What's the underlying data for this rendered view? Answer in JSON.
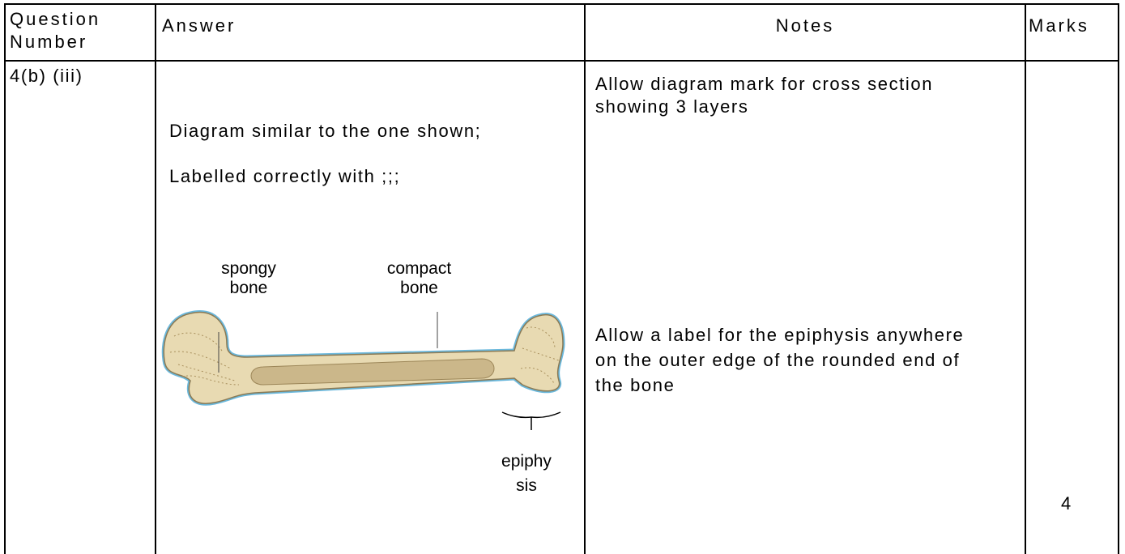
{
  "table": {
    "header": {
      "question_number": "Question Number",
      "answer": "Answer",
      "notes": "Notes",
      "marks": "Marks"
    },
    "row": {
      "question_number": "4(b) (iii)",
      "answer": {
        "text": [
          "Diagram similar to the one shown;",
          "Labelled correctly with ;;;"
        ],
        "diagram_labels": [
          "spongy bone",
          "compact bone",
          "epiphysis"
        ]
      },
      "notes": [
        "Allow diagram mark for cross section showing 3 layers",
        "Allow a label for the epiphysis anywhere on the outer edge of the rounded end of the bone"
      ],
      "marks": 4
    }
  }
}
